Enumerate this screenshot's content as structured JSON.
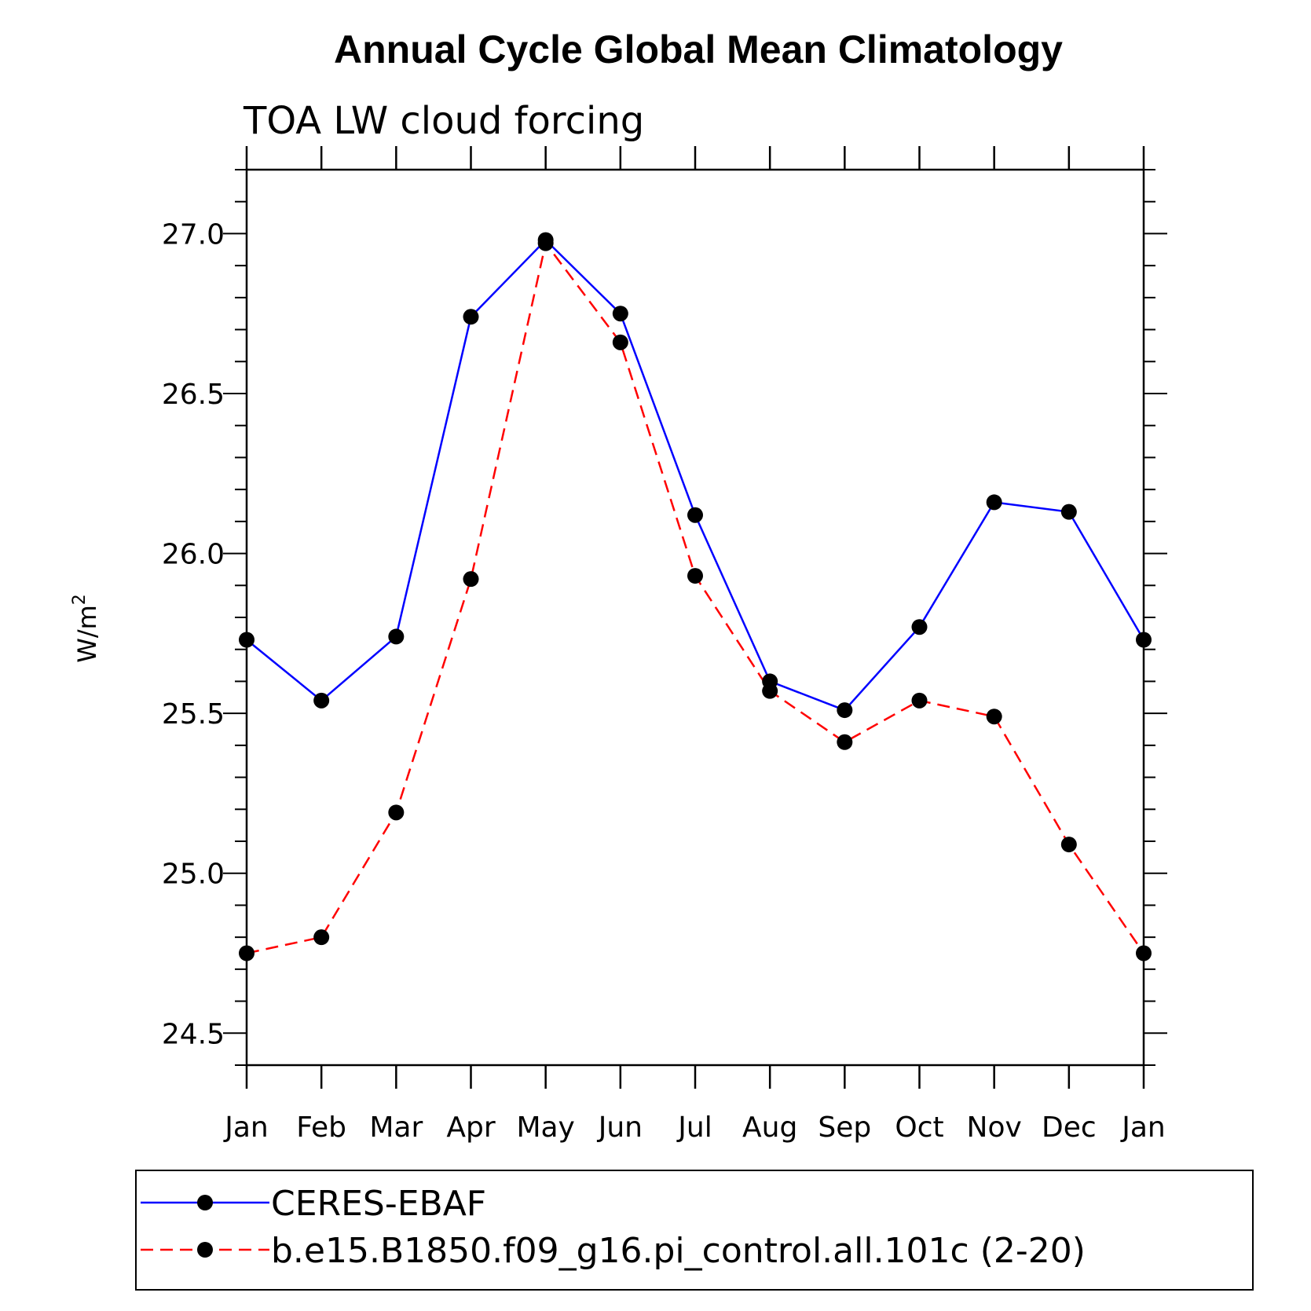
{
  "chart_data": {
    "type": "line",
    "title": "Annual Cycle Global Mean Climatology",
    "subtitle": "TOA LW cloud forcing",
    "xlabel": "",
    "ylabel": "W/m",
    "ylabel_superscript": "2",
    "categories": [
      "Jan",
      "Feb",
      "Mar",
      "Apr",
      "May",
      "Jun",
      "Jul",
      "Aug",
      "Sep",
      "Oct",
      "Nov",
      "Dec",
      "Jan"
    ],
    "ylim": [
      24.4,
      27.2
    ],
    "yticks": [
      "24.5",
      "25.0",
      "25.5",
      "26.0",
      "26.5",
      "27.0"
    ],
    "grid": false,
    "legend_position": "bottom",
    "series": [
      {
        "name": "CERES-EBAF",
        "color": "#0000ff",
        "dash": "solid",
        "marker": "filled-circle",
        "values": [
          25.73,
          25.54,
          25.74,
          26.74,
          26.98,
          26.75,
          26.12,
          25.6,
          25.51,
          25.77,
          26.16,
          26.13,
          25.73
        ]
      },
      {
        "name": "b.e15.B1850.f09_g16.pi_control.all.101c (2-20)",
        "color": "#ff0000",
        "dash": "dashed",
        "marker": "filled-circle",
        "values": [
          24.75,
          24.8,
          25.19,
          25.92,
          26.97,
          26.66,
          25.93,
          25.57,
          25.41,
          25.54,
          25.49,
          25.09,
          24.75
        ]
      }
    ]
  }
}
